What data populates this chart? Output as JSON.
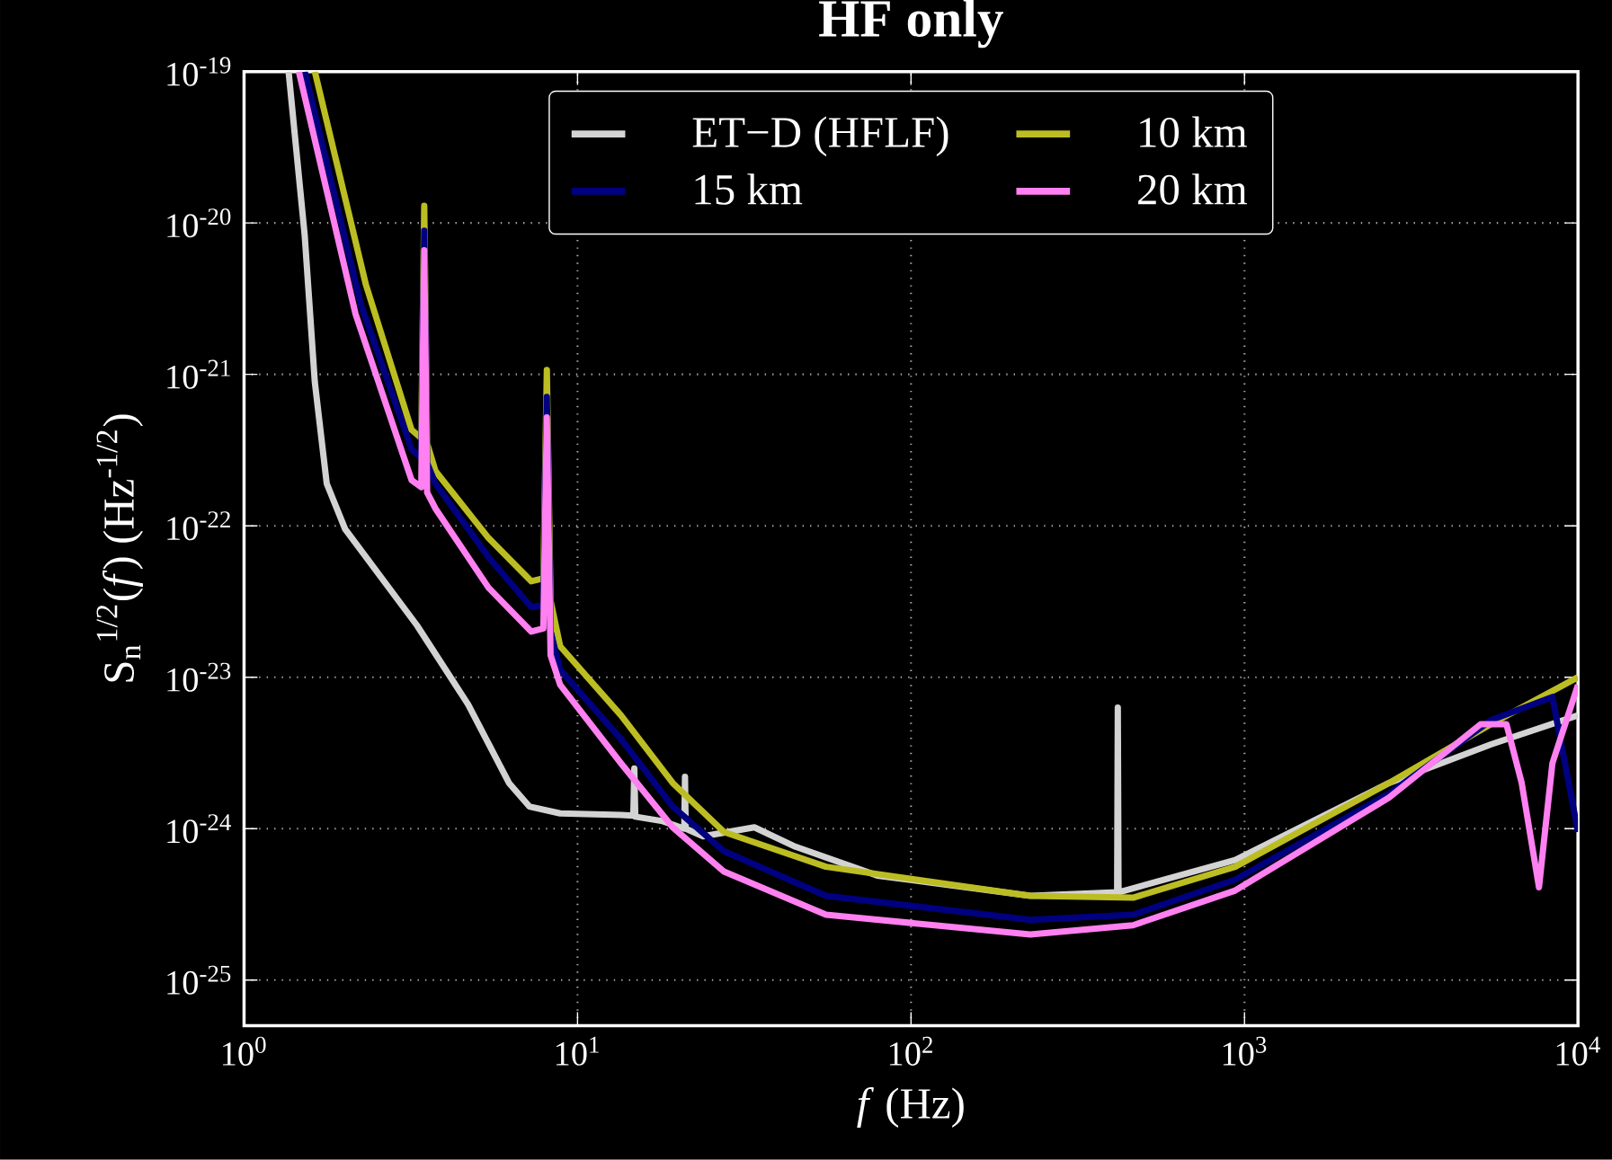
{
  "chart_data": {
    "type": "line",
    "title": "HF only",
    "xlabel": "*f* (Hz)",
    "ylabel": "S$_{n}$$^{1/2}$(*f*) (Hz$^{-1/2}$)",
    "log": "xy",
    "grid": true,
    "legend": "top",
    "xlim": [
      1,
      10000
    ],
    "ylim": [
      5e-26,
      1e-19
    ],
    "xticks": [
      {
        "value": 1,
        "label": "10$^{0}$"
      },
      {
        "value": 10,
        "label": "10$^{1}$"
      },
      {
        "value": 100,
        "label": "10$^{2}$"
      },
      {
        "value": 1000,
        "label": "10$^{3}$"
      },
      {
        "value": 10000,
        "label": "10$^{4}$"
      }
    ],
    "yticks": [
      {
        "value": 1e-25,
        "label": "10$^{-25}$"
      },
      {
        "value": 1e-24,
        "label": "10$^{-24}$"
      },
      {
        "value": 1e-23,
        "label": "10$^{-23}$"
      },
      {
        "value": 1e-22,
        "label": "10$^{-22}$"
      },
      {
        "value": 1e-21,
        "label": "10$^{-21}$"
      },
      {
        "value": 1e-20,
        "label": "10$^{-20}$"
      },
      {
        "value": 1e-19,
        "label": "10$^{-19}$"
      }
    ],
    "series": [
      {
        "name": "ET−D (HFLF)",
        "color": "#d3d3d3",
        "x": [
          1.36,
          1.52,
          1.63,
          1.77,
          2.01,
          3.3,
          4.7,
          6.23,
          7.17,
          8.87,
          13.5,
          14.7,
          14.8,
          14.9,
          18.0,
          20.9,
          21.0,
          21.1,
          23.8,
          33.9,
          45,
          79.2,
          228,
          415,
          417,
          419,
          938,
          2710,
          5480,
          10000
        ],
        "values": [
          1e-19,
          8.3e-21,
          8.9e-22,
          1.9e-22,
          9.5e-23,
          2.2e-23,
          6.6e-24,
          2e-24,
          1.4e-24,
          1.26e-24,
          1.23e-24,
          1.22e-24,
          2.5e-24,
          1.2e-24,
          1.12e-24,
          1e-24,
          2.2e-24,
          1e-24,
          8.9e-25,
          1.02e-24,
          7.6e-25,
          4.9e-25,
          3.6e-25,
          3.8e-25,
          6.3e-24,
          3.8e-25,
          6.2e-25,
          2e-24,
          3.6e-24,
          5.6e-24
        ]
      },
      {
        "name": "10 km",
        "color": "#bcbd22",
        "x": [
          1.63,
          2.32,
          3.18,
          3.4,
          3.47,
          3.54,
          3.75,
          5.41,
          7.27,
          7.9,
          8.09,
          8.3,
          8.87,
          13.5,
          19.3,
          27.5,
          55.6,
          228,
          463,
          938,
          2710,
          5480,
          10000
        ],
        "values": [
          1e-19,
          3.9e-21,
          4.3e-22,
          3.8e-22,
          1.3e-20,
          3.5e-22,
          2.3e-22,
          8.3e-23,
          4.3e-23,
          4.5e-23,
          1.07e-21,
          3.2e-23,
          1.6e-23,
          5.6e-24,
          2e-24,
          9.5e-25,
          5.6e-25,
          3.6e-25,
          3.5e-25,
          5.6e-25,
          2e-24,
          4.9e-24,
          1e-23
        ]
      },
      {
        "name": "15 km",
        "color": "#000080",
        "x": [
          1.52,
          2.24,
          3.18,
          3.4,
          3.47,
          3.54,
          3.75,
          5.41,
          7.27,
          7.9,
          8.09,
          8.3,
          8.87,
          13.5,
          19.3,
          27.5,
          55.6,
          228,
          463,
          938,
          2710,
          5480,
          8380,
          10000
        ],
        "values": [
          1e-19,
          2.9e-21,
          3.2e-22,
          2.8e-22,
          8.9e-21,
          2.6e-22,
          1.9e-22,
          6.2e-23,
          2.9e-23,
          3e-23,
          7.1e-22,
          2e-23,
          1.12e-23,
          3.9e-24,
          1.4e-24,
          7.1e-25,
          3.6e-25,
          2.5e-25,
          2.7e-25,
          4.6e-25,
          1.7e-24,
          5.2e-24,
          7.4e-24,
          9.5e-25
        ]
      },
      {
        "name": "20 km",
        "color": "#ff80f0",
        "x": [
          1.46,
          2.16,
          3.18,
          3.4,
          3.47,
          3.54,
          3.75,
          5.41,
          7.27,
          7.9,
          8.09,
          8.3,
          8.87,
          13.5,
          19.3,
          27.5,
          55.6,
          228,
          463,
          938,
          2710,
          5110,
          6100,
          6780,
          7640,
          8380,
          10000
        ],
        "values": [
          1e-19,
          2.5e-21,
          2e-22,
          1.8e-22,
          6.6e-21,
          1.66e-22,
          1.3e-22,
          3.9e-23,
          2e-23,
          2.1e-23,
          5.2e-22,
          1.4e-23,
          8.9e-24,
          2.7e-24,
          1.02e-24,
          5.2e-25,
          2.7e-25,
          2e-25,
          2.3e-25,
          3.9e-25,
          1.6e-24,
          4.9e-24,
          4.9e-24,
          2e-24,
          4.1e-25,
          2.7e-24,
          8.9e-24
        ]
      }
    ]
  }
}
